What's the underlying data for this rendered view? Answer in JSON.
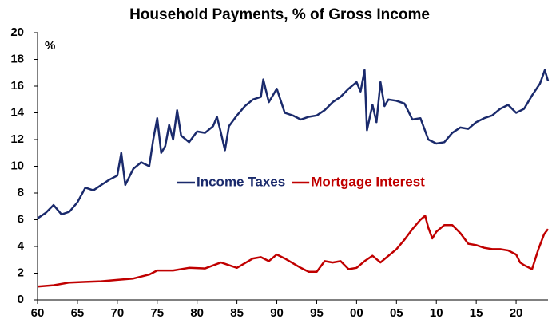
{
  "chart_data": {
    "type": "line",
    "title": "Household Payments, % of Gross Income",
    "y_label": "%",
    "xlim": [
      1960,
      2024
    ],
    "ylim": [
      0,
      20
    ],
    "xticks": [
      {
        "value": 1960,
        "label": "60"
      },
      {
        "value": 1965,
        "label": "65"
      },
      {
        "value": 1970,
        "label": "70"
      },
      {
        "value": 1975,
        "label": "75"
      },
      {
        "value": 1980,
        "label": "80"
      },
      {
        "value": 1985,
        "label": "85"
      },
      {
        "value": 1990,
        "label": "90"
      },
      {
        "value": 1995,
        "label": "95"
      },
      {
        "value": 2000,
        "label": "00"
      },
      {
        "value": 2005,
        "label": "05"
      },
      {
        "value": 2010,
        "label": "10"
      },
      {
        "value": 2015,
        "label": "15"
      },
      {
        "value": 2020,
        "label": "20"
      }
    ],
    "yticks": [
      0,
      2,
      4,
      6,
      8,
      10,
      12,
      14,
      16,
      18,
      20
    ],
    "legend": "center",
    "series": [
      {
        "name": "Income Taxes",
        "color": "#1a2a6c",
        "x": [
          1960,
          1961,
          1962,
          1963,
          1964,
          1965,
          1966,
          1967,
          1968,
          1969,
          1970,
          1970.5,
          1971,
          1972,
          1973,
          1974,
          1974.5,
          1975,
          1975.5,
          1976,
          1976.5,
          1977,
          1977.5,
          1978,
          1979,
          1980,
          1981,
          1982,
          1982.5,
          1983,
          1983.5,
          1984,
          1985,
          1986,
          1987,
          1988,
          1988.3,
          1989,
          1990,
          1991,
          1992,
          1993,
          1994,
          1995,
          1996,
          1997,
          1998,
          1999,
          2000,
          2000.5,
          2001,
          2001.3,
          2002,
          2002.5,
          2003,
          2003.5,
          2004,
          2005,
          2006,
          2007,
          2008,
          2009,
          2010,
          2011,
          2012,
          2013,
          2014,
          2015,
          2016,
          2017,
          2018,
          2019,
          2020,
          2021,
          2022,
          2023,
          2023.6,
          2024
        ],
        "values": [
          6.1,
          6.5,
          7.1,
          6.4,
          6.6,
          7.3,
          8.4,
          8.2,
          8.6,
          9.0,
          9.3,
          11.0,
          8.6,
          9.8,
          10.3,
          10.0,
          12.0,
          13.6,
          11.0,
          11.5,
          13.1,
          12.0,
          14.2,
          12.3,
          11.8,
          12.6,
          12.5,
          13.0,
          13.7,
          12.5,
          11.2,
          13.0,
          13.8,
          14.5,
          15.0,
          15.2,
          16.5,
          14.8,
          15.8,
          14.0,
          13.8,
          13.5,
          13.7,
          13.8,
          14.2,
          14.8,
          15.2,
          15.8,
          16.3,
          15.6,
          17.2,
          12.7,
          14.6,
          13.3,
          16.3,
          14.5,
          15.0,
          14.9,
          14.7,
          13.5,
          13.6,
          12.0,
          11.7,
          11.8,
          12.5,
          12.9,
          12.8,
          13.3,
          13.6,
          13.8,
          14.3,
          14.6,
          14.0,
          14.3,
          15.3,
          16.2,
          17.2,
          16.4
        ]
      },
      {
        "name": "Mortgage Interest",
        "color": "#c00000",
        "x": [
          1960,
          1962,
          1964,
          1966,
          1968,
          1970,
          1972,
          1974,
          1975,
          1977,
          1979,
          1981,
          1983,
          1985,
          1987,
          1988,
          1989,
          1990,
          1991,
          1993,
          1994,
          1995,
          1996,
          1997,
          1998,
          1999,
          2000,
          2001,
          2002,
          2003,
          2004,
          2005,
          2006,
          2007,
          2008,
          2008.6,
          2009,
          2009.5,
          2010,
          2011,
          2012,
          2013,
          2014,
          2015,
          2016,
          2017,
          2018,
          2019,
          2020,
          2020.5,
          2021,
          2022,
          2022.8,
          2023.5,
          2024
        ],
        "values": [
          1.0,
          1.1,
          1.3,
          1.35,
          1.4,
          1.5,
          1.6,
          1.9,
          2.2,
          2.2,
          2.4,
          2.35,
          2.8,
          2.4,
          3.1,
          3.2,
          2.9,
          3.4,
          3.1,
          2.4,
          2.1,
          2.1,
          2.9,
          2.8,
          2.9,
          2.3,
          2.4,
          2.9,
          3.3,
          2.8,
          3.3,
          3.8,
          4.5,
          5.3,
          6.0,
          6.3,
          5.4,
          4.6,
          5.1,
          5.6,
          5.6,
          5.0,
          4.2,
          4.1,
          3.9,
          3.8,
          3.8,
          3.7,
          3.4,
          2.8,
          2.6,
          2.3,
          3.8,
          4.9,
          5.3
        ]
      }
    ]
  }
}
